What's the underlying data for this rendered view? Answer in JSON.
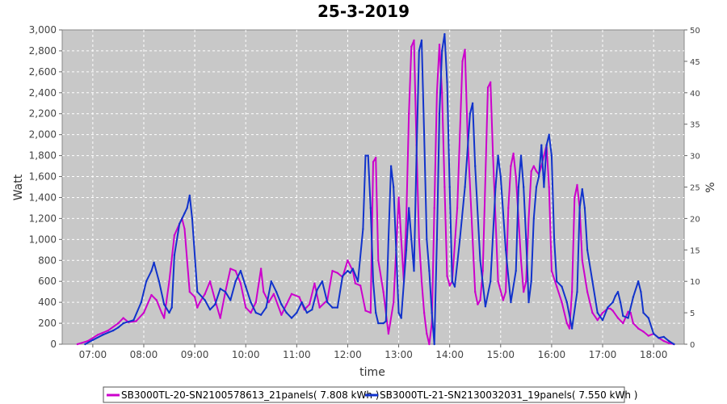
{
  "chart_data": {
    "type": "line",
    "title": "25-3-2019",
    "xlabel": "time",
    "ylabel": "Watt",
    "y2label": "%",
    "ylim": [
      0,
      3000
    ],
    "y2lim": [
      0,
      50
    ],
    "y_ticks": [
      "0",
      "200",
      "400",
      "600",
      "800",
      "1,000",
      "1,200",
      "1,400",
      "1,600",
      "1,800",
      "2,000",
      "2,200",
      "2,400",
      "2,600",
      "2,800",
      "3,000"
    ],
    "y2_ticks": [
      "0",
      "5",
      "10",
      "15",
      "20",
      "25",
      "30",
      "35",
      "40",
      "45",
      "50"
    ],
    "x_ticks": [
      "07:00",
      "08:00",
      "09:00",
      "10:00",
      "11:00",
      "12:00",
      "13:00",
      "14:00",
      "15:00",
      "16:00",
      "17:00",
      "18:00"
    ],
    "x_tick_hours": [
      7,
      8,
      9,
      10,
      11,
      12,
      13,
      14,
      15,
      16,
      17,
      18
    ],
    "xlim_hours": [
      6.4,
      18.6
    ],
    "grid": true,
    "background": "#c8c8c8",
    "legend_position": "bottom",
    "series": [
      {
        "name": "SB3000TL-20-SN2100578613_21panels( 7.808 kWh )",
        "color": "#cc00cc",
        "points": [
          [
            6.7,
            0
          ],
          [
            6.9,
            30
          ],
          [
            7.1,
            90
          ],
          [
            7.3,
            130
          ],
          [
            7.5,
            200
          ],
          [
            7.6,
            250
          ],
          [
            7.7,
            210
          ],
          [
            7.85,
            220
          ],
          [
            8.0,
            300
          ],
          [
            8.15,
            470
          ],
          [
            8.25,
            420
          ],
          [
            8.35,
            300
          ],
          [
            8.4,
            250
          ],
          [
            8.5,
            600
          ],
          [
            8.6,
            1040
          ],
          [
            8.7,
            1150
          ],
          [
            8.75,
            1200
          ],
          [
            8.8,
            1100
          ],
          [
            8.9,
            500
          ],
          [
            9.0,
            450
          ],
          [
            9.05,
            350
          ],
          [
            9.1,
            400
          ],
          [
            9.2,
            480
          ],
          [
            9.3,
            600
          ],
          [
            9.4,
            420
          ],
          [
            9.5,
            250
          ],
          [
            9.6,
            500
          ],
          [
            9.7,
            720
          ],
          [
            9.8,
            700
          ],
          [
            9.9,
            580
          ],
          [
            10.0,
            350
          ],
          [
            10.1,
            300
          ],
          [
            10.2,
            400
          ],
          [
            10.3,
            720
          ],
          [
            10.35,
            500
          ],
          [
            10.45,
            400
          ],
          [
            10.55,
            480
          ],
          [
            10.7,
            280
          ],
          [
            10.8,
            380
          ],
          [
            10.9,
            480
          ],
          [
            11.05,
            450
          ],
          [
            11.15,
            330
          ],
          [
            11.25,
            380
          ],
          [
            11.35,
            580
          ],
          [
            11.45,
            350
          ],
          [
            11.6,
            420
          ],
          [
            11.7,
            700
          ],
          [
            11.8,
            680
          ],
          [
            11.9,
            640
          ],
          [
            12.0,
            800
          ],
          [
            12.1,
            700
          ],
          [
            12.15,
            580
          ],
          [
            12.25,
            560
          ],
          [
            12.35,
            320
          ],
          [
            12.45,
            300
          ],
          [
            12.5,
            1740
          ],
          [
            12.55,
            1780
          ],
          [
            12.6,
            800
          ],
          [
            12.7,
            500
          ],
          [
            12.8,
            100
          ],
          [
            12.9,
            400
          ],
          [
            12.95,
            900
          ],
          [
            13.0,
            1400
          ],
          [
            13.05,
            1000
          ],
          [
            13.1,
            600
          ],
          [
            13.15,
            1200
          ],
          [
            13.2,
            2200
          ],
          [
            13.25,
            2840
          ],
          [
            13.3,
            2900
          ],
          [
            13.35,
            1900
          ],
          [
            13.4,
            1000
          ],
          [
            13.45,
            600
          ],
          [
            13.5,
            300
          ],
          [
            13.55,
            100
          ],
          [
            13.6,
            0
          ],
          [
            13.65,
            200
          ],
          [
            13.7,
            1300
          ],
          [
            13.75,
            2400
          ],
          [
            13.8,
            2860
          ],
          [
            13.85,
            2400
          ],
          [
            13.9,
            1500
          ],
          [
            13.95,
            650
          ],
          [
            14.0,
            560
          ],
          [
            14.05,
            600
          ],
          [
            14.15,
            1300
          ],
          [
            14.25,
            2700
          ],
          [
            14.3,
            2810
          ],
          [
            14.35,
            2000
          ],
          [
            14.45,
            1000
          ],
          [
            14.5,
            500
          ],
          [
            14.55,
            380
          ],
          [
            14.6,
            420
          ],
          [
            14.65,
            700
          ],
          [
            14.75,
            2450
          ],
          [
            14.8,
            2500
          ],
          [
            14.85,
            1800
          ],
          [
            14.95,
            600
          ],
          [
            15.05,
            420
          ],
          [
            15.1,
            500
          ],
          [
            15.15,
            1300
          ],
          [
            15.2,
            1700
          ],
          [
            15.25,
            1820
          ],
          [
            15.3,
            1600
          ],
          [
            15.35,
            1200
          ],
          [
            15.4,
            800
          ],
          [
            15.45,
            500
          ],
          [
            15.5,
            600
          ],
          [
            15.55,
            1200
          ],
          [
            15.6,
            1650
          ],
          [
            15.65,
            1700
          ],
          [
            15.7,
            1650
          ],
          [
            15.75,
            1620
          ],
          [
            15.8,
            1700
          ],
          [
            15.85,
            1800
          ],
          [
            15.9,
            1900
          ],
          [
            15.95,
            1500
          ],
          [
            16.0,
            700
          ],
          [
            16.1,
            550
          ],
          [
            16.2,
            400
          ],
          [
            16.3,
            200
          ],
          [
            16.35,
            150
          ],
          [
            16.4,
            500
          ],
          [
            16.45,
            1400
          ],
          [
            16.5,
            1520
          ],
          [
            16.55,
            1300
          ],
          [
            16.6,
            800
          ],
          [
            16.7,
            500
          ],
          [
            16.8,
            300
          ],
          [
            16.9,
            230
          ],
          [
            17.0,
            300
          ],
          [
            17.1,
            340
          ],
          [
            17.15,
            340
          ],
          [
            17.2,
            320
          ],
          [
            17.3,
            250
          ],
          [
            17.4,
            200
          ],
          [
            17.5,
            310
          ],
          [
            17.55,
            300
          ],
          [
            17.6,
            200
          ],
          [
            17.7,
            150
          ],
          [
            17.8,
            120
          ],
          [
            17.9,
            80
          ],
          [
            18.0,
            100
          ],
          [
            18.1,
            60
          ],
          [
            18.2,
            30
          ],
          [
            18.3,
            10
          ],
          [
            18.4,
            0
          ]
        ]
      },
      {
        "name": "SB3000TL-21-SN2130032031_19panels( 7.550 kWh )",
        "color": "#1133cc",
        "points": [
          [
            6.85,
            0
          ],
          [
            7.0,
            40
          ],
          [
            7.2,
            90
          ],
          [
            7.4,
            130
          ],
          [
            7.5,
            160
          ],
          [
            7.6,
            200
          ],
          [
            7.8,
            230
          ],
          [
            7.95,
            400
          ],
          [
            8.05,
            600
          ],
          [
            8.15,
            700
          ],
          [
            8.2,
            780
          ],
          [
            8.3,
            600
          ],
          [
            8.4,
            380
          ],
          [
            8.5,
            300
          ],
          [
            8.55,
            350
          ],
          [
            8.6,
            850
          ],
          [
            8.7,
            1150
          ],
          [
            8.8,
            1250
          ],
          [
            8.85,
            1300
          ],
          [
            8.9,
            1420
          ],
          [
            8.95,
            1200
          ],
          [
            9.05,
            500
          ],
          [
            9.2,
            420
          ],
          [
            9.3,
            330
          ],
          [
            9.4,
            380
          ],
          [
            9.5,
            530
          ],
          [
            9.6,
            500
          ],
          [
            9.7,
            420
          ],
          [
            9.8,
            600
          ],
          [
            9.9,
            700
          ],
          [
            10.0,
            550
          ],
          [
            10.1,
            400
          ],
          [
            10.2,
            300
          ],
          [
            10.3,
            280
          ],
          [
            10.4,
            350
          ],
          [
            10.5,
            600
          ],
          [
            10.6,
            500
          ],
          [
            10.7,
            380
          ],
          [
            10.8,
            300
          ],
          [
            10.9,
            250
          ],
          [
            11.0,
            300
          ],
          [
            11.1,
            400
          ],
          [
            11.2,
            300
          ],
          [
            11.3,
            330
          ],
          [
            11.4,
            520
          ],
          [
            11.5,
            600
          ],
          [
            11.6,
            400
          ],
          [
            11.7,
            350
          ],
          [
            11.8,
            350
          ],
          [
            11.9,
            650
          ],
          [
            12.0,
            700
          ],
          [
            12.05,
            680
          ],
          [
            12.1,
            720
          ],
          [
            12.2,
            600
          ],
          [
            12.3,
            1100
          ],
          [
            12.35,
            1800
          ],
          [
            12.4,
            1800
          ],
          [
            12.45,
            1300
          ],
          [
            12.5,
            600
          ],
          [
            12.55,
            300
          ],
          [
            12.6,
            200
          ],
          [
            12.7,
            200
          ],
          [
            12.75,
            220
          ],
          [
            12.8,
            1000
          ],
          [
            12.85,
            1700
          ],
          [
            12.9,
            1500
          ],
          [
            12.95,
            900
          ],
          [
            13.0,
            300
          ],
          [
            13.05,
            250
          ],
          [
            13.15,
            900
          ],
          [
            13.2,
            1300
          ],
          [
            13.25,
            1000
          ],
          [
            13.3,
            700
          ],
          [
            13.35,
            1800
          ],
          [
            13.4,
            2800
          ],
          [
            13.45,
            2900
          ],
          [
            13.5,
            2000
          ],
          [
            13.55,
            1000
          ],
          [
            13.6,
            700
          ],
          [
            13.65,
            300
          ],
          [
            13.7,
            0
          ],
          [
            13.75,
            1000
          ],
          [
            13.8,
            2200
          ],
          [
            13.85,
            2800
          ],
          [
            13.9,
            2960
          ],
          [
            13.95,
            2500
          ],
          [
            14.0,
            1500
          ],
          [
            14.05,
            600
          ],
          [
            14.1,
            550
          ],
          [
            14.2,
            1000
          ],
          [
            14.3,
            1500
          ],
          [
            14.4,
            2200
          ],
          [
            14.45,
            2300
          ],
          [
            14.5,
            1700
          ],
          [
            14.6,
            800
          ],
          [
            14.7,
            360
          ],
          [
            14.8,
            600
          ],
          [
            14.9,
            1500
          ],
          [
            14.95,
            1800
          ],
          [
            15.0,
            1600
          ],
          [
            15.1,
            900
          ],
          [
            15.2,
            400
          ],
          [
            15.3,
            700
          ],
          [
            15.35,
            1500
          ],
          [
            15.4,
            1800
          ],
          [
            15.45,
            1500
          ],
          [
            15.5,
            1000
          ],
          [
            15.55,
            400
          ],
          [
            15.6,
            600
          ],
          [
            15.65,
            1200
          ],
          [
            15.7,
            1500
          ],
          [
            15.75,
            1600
          ],
          [
            15.8,
            1900
          ],
          [
            15.85,
            1500
          ],
          [
            15.9,
            1900
          ],
          [
            15.95,
            2000
          ],
          [
            16.0,
            1800
          ],
          [
            16.05,
            1000
          ],
          [
            16.1,
            600
          ],
          [
            16.2,
            550
          ],
          [
            16.3,
            400
          ],
          [
            16.4,
            150
          ],
          [
            16.5,
            500
          ],
          [
            16.55,
            1300
          ],
          [
            16.6,
            1480
          ],
          [
            16.65,
            1300
          ],
          [
            16.7,
            900
          ],
          [
            16.8,
            600
          ],
          [
            16.9,
            300
          ],
          [
            17.0,
            230
          ],
          [
            17.1,
            350
          ],
          [
            17.2,
            400
          ],
          [
            17.25,
            460
          ],
          [
            17.3,
            500
          ],
          [
            17.35,
            400
          ],
          [
            17.4,
            270
          ],
          [
            17.5,
            250
          ],
          [
            17.6,
            450
          ],
          [
            17.7,
            600
          ],
          [
            17.75,
            500
          ],
          [
            17.8,
            300
          ],
          [
            17.9,
            250
          ],
          [
            18.0,
            100
          ],
          [
            18.1,
            60
          ],
          [
            18.2,
            70
          ],
          [
            18.3,
            30
          ],
          [
            18.4,
            0
          ]
        ]
      }
    ]
  }
}
